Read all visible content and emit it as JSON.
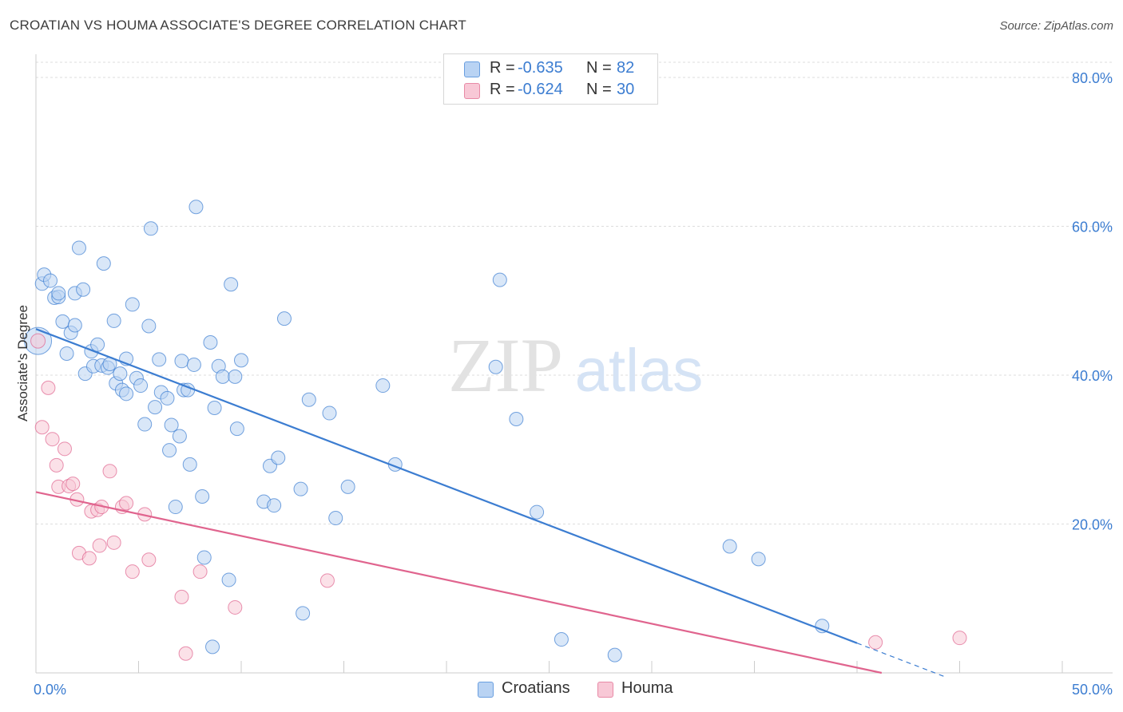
{
  "header": {
    "title": "CROATIAN VS HOUMA ASSOCIATE'S DEGREE CORRELATION CHART",
    "source": "Source: ZipAtlas.com"
  },
  "watermark": {
    "zip": "ZIP",
    "atlas": "atlas"
  },
  "legend": {
    "rows": [
      {
        "r_label": "R =",
        "r_value": "-0.635",
        "n_label": "N =",
        "n_value": "82",
        "fill": "#b9d3f3",
        "stroke": "#6a9fe0"
      },
      {
        "r_label": "R =",
        "r_value": "-0.624",
        "n_label": "N =",
        "n_value": "30",
        "fill": "#f8c8d6",
        "stroke": "#e88aa6"
      }
    ]
  },
  "bottom_legend": [
    {
      "label": "Croatians",
      "fill": "#b9d3f3",
      "stroke": "#6a9fe0"
    },
    {
      "label": "Houma",
      "fill": "#f8c8d6",
      "stroke": "#e88aa6"
    }
  ],
  "chart_data": {
    "type": "scatter",
    "title": "CROATIAN VS HOUMA ASSOCIATE'S DEGREE CORRELATION CHART",
    "xlabel": "",
    "ylabel": "Associate's Degree",
    "xlim": [
      0,
      50
    ],
    "ylim": [
      0,
      80
    ],
    "x_tick_labels": [
      "0.0%",
      "50.0%"
    ],
    "y_ticks": [
      20,
      40,
      60,
      80
    ],
    "y_tick_labels": [
      "20.0%",
      "40.0%",
      "60.0%",
      "80.0%"
    ],
    "grid": true,
    "legend_position": "top-center",
    "series": [
      {
        "name": "Croatians",
        "color": "#3c7dd1",
        "fill": "#b9d3f3",
        "R": -0.635,
        "N": 82,
        "trend": {
          "x0": 0,
          "y0": 46.2,
          "x1": 40,
          "y1": 4.0,
          "dash_to_x": 44.3
        },
        "points": [
          [
            0.1,
            44.6
          ],
          [
            0.3,
            52.3
          ],
          [
            0.4,
            53.5
          ],
          [
            0.7,
            52.7
          ],
          [
            0.9,
            50.4
          ],
          [
            1.1,
            50.5
          ],
          [
            1.1,
            51.0
          ],
          [
            1.3,
            47.2
          ],
          [
            1.5,
            42.9
          ],
          [
            1.7,
            45.7
          ],
          [
            1.9,
            51.0
          ],
          [
            1.9,
            46.7
          ],
          [
            2.1,
            57.1
          ],
          [
            2.3,
            51.5
          ],
          [
            2.4,
            40.2
          ],
          [
            2.7,
            43.2
          ],
          [
            2.8,
            41.2
          ],
          [
            3.0,
            44.1
          ],
          [
            3.2,
            41.3
          ],
          [
            3.3,
            55.0
          ],
          [
            3.5,
            41.0
          ],
          [
            3.6,
            41.5
          ],
          [
            3.8,
            47.3
          ],
          [
            3.9,
            38.9
          ],
          [
            4.1,
            40.2
          ],
          [
            4.2,
            38.0
          ],
          [
            4.4,
            37.5
          ],
          [
            4.4,
            42.2
          ],
          [
            4.7,
            49.5
          ],
          [
            4.9,
            39.6
          ],
          [
            5.1,
            38.6
          ],
          [
            5.3,
            33.4
          ],
          [
            5.5,
            46.6
          ],
          [
            5.6,
            59.7
          ],
          [
            5.8,
            35.7
          ],
          [
            6.0,
            42.1
          ],
          [
            6.1,
            37.7
          ],
          [
            6.4,
            36.9
          ],
          [
            6.5,
            29.9
          ],
          [
            6.6,
            33.3
          ],
          [
            6.8,
            22.3
          ],
          [
            7.0,
            31.8
          ],
          [
            7.1,
            41.9
          ],
          [
            7.2,
            38.0
          ],
          [
            7.4,
            38.0
          ],
          [
            7.5,
            28.0
          ],
          [
            7.7,
            41.4
          ],
          [
            7.8,
            62.6
          ],
          [
            8.1,
            23.7
          ],
          [
            8.2,
            15.5
          ],
          [
            8.5,
            44.4
          ],
          [
            8.7,
            35.6
          ],
          [
            8.9,
            41.2
          ],
          [
            9.1,
            39.8
          ],
          [
            9.4,
            12.5
          ],
          [
            9.5,
            52.2
          ],
          [
            9.7,
            39.8
          ],
          [
            9.8,
            32.8
          ],
          [
            10.0,
            42.0
          ],
          [
            11.1,
            23.0
          ],
          [
            11.4,
            27.8
          ],
          [
            11.6,
            22.5
          ],
          [
            11.8,
            28.9
          ],
          [
            12.1,
            47.6
          ],
          [
            12.9,
            24.7
          ],
          [
            13.0,
            8.0
          ],
          [
            13.3,
            36.7
          ],
          [
            14.3,
            34.9
          ],
          [
            14.6,
            20.8
          ],
          [
            15.2,
            25.0
          ],
          [
            16.9,
            38.6
          ],
          [
            17.5,
            28.0
          ],
          [
            22.4,
            41.1
          ],
          [
            22.6,
            52.8
          ],
          [
            23.4,
            34.1
          ],
          [
            24.4,
            21.6
          ],
          [
            25.6,
            4.5
          ],
          [
            28.2,
            2.4
          ],
          [
            33.8,
            17.0
          ],
          [
            35.2,
            15.3
          ],
          [
            38.3,
            6.3
          ],
          [
            8.6,
            3.5
          ]
        ]
      },
      {
        "name": "Houma",
        "color": "#e0648e",
        "fill": "#f8c8d6",
        "R": -0.624,
        "N": 30,
        "trend": {
          "x0": 0,
          "y0": 24.3,
          "x1": 41.2,
          "y1": 0.0
        },
        "points": [
          [
            0.1,
            44.6
          ],
          [
            0.3,
            33.0
          ],
          [
            0.6,
            38.3
          ],
          [
            0.8,
            31.4
          ],
          [
            1.0,
            27.9
          ],
          [
            1.1,
            25.0
          ],
          [
            1.4,
            30.1
          ],
          [
            1.6,
            25.1
          ],
          [
            1.8,
            25.4
          ],
          [
            2.0,
            23.3
          ],
          [
            2.1,
            16.1
          ],
          [
            2.6,
            15.4
          ],
          [
            2.7,
            21.7
          ],
          [
            3.0,
            21.9
          ],
          [
            3.1,
            17.1
          ],
          [
            3.2,
            22.3
          ],
          [
            3.6,
            27.1
          ],
          [
            3.8,
            17.5
          ],
          [
            4.2,
            22.3
          ],
          [
            4.4,
            22.8
          ],
          [
            4.7,
            13.6
          ],
          [
            5.3,
            21.3
          ],
          [
            5.5,
            15.2
          ],
          [
            7.1,
            10.2
          ],
          [
            7.3,
            2.6
          ],
          [
            8.0,
            13.6
          ],
          [
            9.7,
            8.8
          ],
          [
            14.2,
            12.4
          ],
          [
            40.9,
            4.1
          ],
          [
            45.0,
            4.7
          ]
        ]
      }
    ]
  }
}
